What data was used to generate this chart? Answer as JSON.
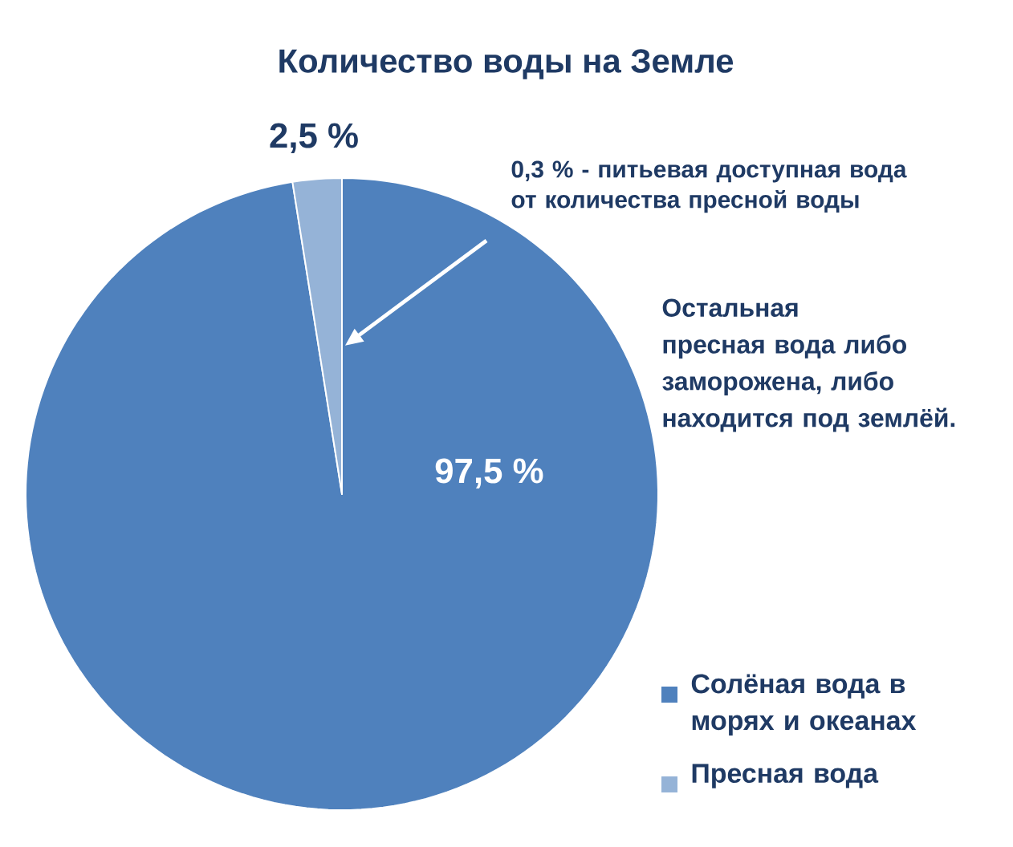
{
  "chart_data": {
    "type": "pie",
    "title": "Количество воды на Земле",
    "categories": [
      "Солёная вода в морях и океанах",
      "Пресная вода"
    ],
    "values": [
      97.5,
      2.5
    ],
    "value_labels": [
      "97,5 %",
      "2,5 %"
    ],
    "colors": [
      "#4f81bd",
      "#95b3d7"
    ],
    "legend": "bottom right",
    "annotations": [
      "**0,3 %** - питьевая доступная вода от количества пресной воды",
      "Остальная пресная вода либо заморожена, либо находится под землёй."
    ]
  }
}
